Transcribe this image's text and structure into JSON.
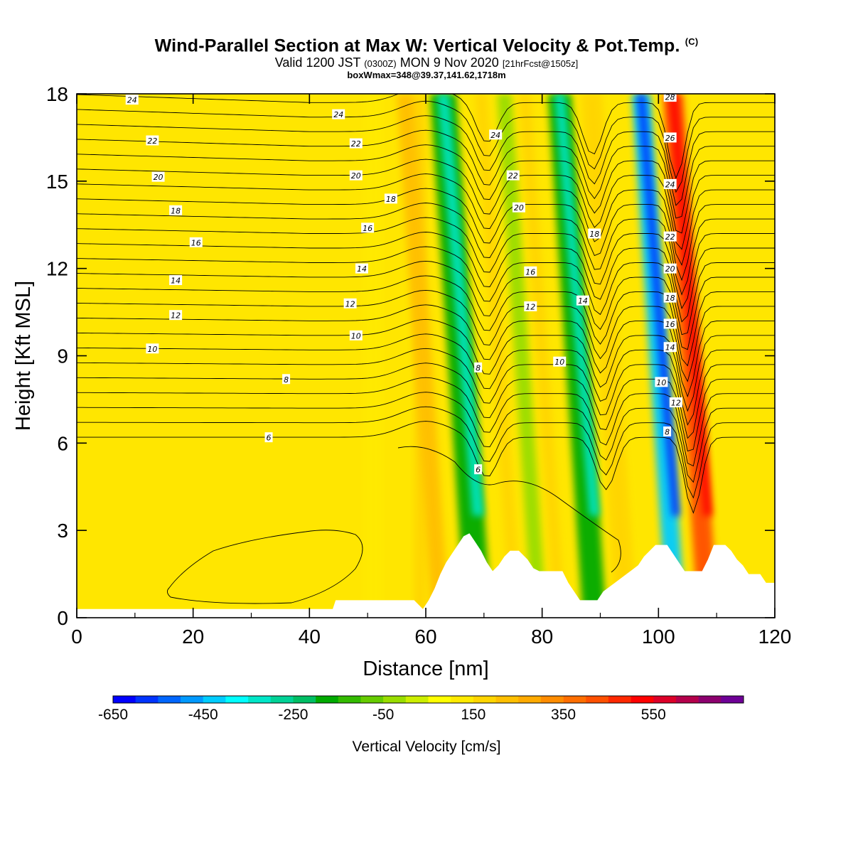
{
  "header": {
    "title_main": "Wind-Parallel Section at Max W: Vertical Velocity & Pot.Temp.",
    "title_copyright": "(C)",
    "valid_prefix": "Valid 1200 JST",
    "valid_utc": "(0300Z)",
    "valid_date": "MON 9 Nov 2020",
    "forecast_info": "[21hrFcst@1505z]",
    "box_info": "boxWmax=348@39.37,141.62,1718m"
  },
  "chart_data": {
    "type": "heatmap",
    "xlabel": "Distance [nm]",
    "ylabel": "Height [Kft MSL]",
    "xlim": [
      0,
      120
    ],
    "ylim": [
      0,
      18
    ],
    "x_ticks": [
      "0",
      "20",
      "40",
      "60",
      "80",
      "100",
      "120"
    ],
    "y_ticks": [
      "0",
      "3",
      "6",
      "9",
      "12",
      "15",
      "18"
    ],
    "colorbar": {
      "label": "Vertical Velocity [cm/s]",
      "tick_labels": [
        "-650",
        "-450",
        "-250",
        "-50",
        "150",
        "350",
        "550"
      ],
      "colors": [
        "#0000ff",
        "#0033ff",
        "#0066ff",
        "#0099ff",
        "#00ccff",
        "#00ffff",
        "#00e6c8",
        "#00d296",
        "#00be64",
        "#00aa00",
        "#33bb00",
        "#66cc00",
        "#99dd00",
        "#ccee00",
        "#ffff00",
        "#ffea00",
        "#ffd500",
        "#ffbf00",
        "#ffaa00",
        "#ff8c00",
        "#ff6e00",
        "#ff5000",
        "#ff2800",
        "#ff0000",
        "#dc0028",
        "#b4004b",
        "#8c006e",
        "#6e0096"
      ]
    },
    "vertical_velocity_bands": [
      {
        "x": 51,
        "w": 3,
        "value": 80
      },
      {
        "x": 59,
        "w": 2,
        "value": 120
      },
      {
        "x": 62.5,
        "w": 3,
        "value": 150
      },
      {
        "x": 69,
        "w": 4.5,
        "value": -250
      },
      {
        "x": 75.5,
        "w": 2,
        "value": 110
      },
      {
        "x": 79.5,
        "w": 2.5,
        "value": -80
      },
      {
        "x": 83,
        "w": 2,
        "value": 120
      },
      {
        "x": 89,
        "w": 4,
        "value": -250
      },
      {
        "x": 94.5,
        "w": 3.5,
        "value": 140
      },
      {
        "x": 103,
        "w": 3.2,
        "value": -500
      },
      {
        "x": 108.5,
        "w": 3.5,
        "value": 380
      }
    ],
    "potential_temperature_labels": [
      "24",
      "22",
      "20",
      "18",
      "16",
      "14",
      "12",
      "10",
      "8",
      "6",
      "24",
      "22",
      "20",
      "18",
      "16",
      "14",
      "12",
      "10",
      "8",
      "6",
      "24",
      "22",
      "20",
      "16",
      "12",
      "10",
      "18",
      "14",
      "28",
      "26",
      "24",
      "22",
      "20",
      "18",
      "16",
      "14",
      "10",
      "12",
      "8"
    ],
    "terrain_heights": [
      [
        0,
        0.3
      ],
      [
        44,
        0.3
      ],
      [
        44.5,
        0.6
      ],
      [
        58,
        0.6
      ],
      [
        59.5,
        0.3
      ],
      [
        60.5,
        0.6
      ],
      [
        61.5,
        1.0
      ],
      [
        62.5,
        1.5
      ],
      [
        63.5,
        1.9
      ],
      [
        64.5,
        2.2
      ],
      [
        65.5,
        2.5
      ],
      [
        66.5,
        2.8
      ],
      [
        67.5,
        2.9
      ],
      [
        68.5,
        2.6
      ],
      [
        69.5,
        2.3
      ],
      [
        70.5,
        1.9
      ],
      [
        71.5,
        1.6
      ],
      [
        72.5,
        1.8
      ],
      [
        73.5,
        2.1
      ],
      [
        74.5,
        2.3
      ],
      [
        76,
        2.3
      ],
      [
        77.5,
        2.0
      ],
      [
        78.5,
        1.7
      ],
      [
        79.5,
        1.6
      ],
      [
        83.5,
        1.6
      ],
      [
        84.5,
        1.2
      ],
      [
        85.5,
        0.9
      ],
      [
        86.5,
        0.6
      ],
      [
        89.5,
        0.6
      ],
      [
        90.5,
        0.9
      ],
      [
        92.5,
        1.2
      ],
      [
        94.5,
        1.5
      ],
      [
        96.5,
        1.8
      ],
      [
        97.5,
        2.1
      ],
      [
        98.5,
        2.3
      ],
      [
        99.5,
        2.5
      ],
      [
        101.5,
        2.5
      ],
      [
        102.5,
        2.2
      ],
      [
        103.5,
        1.9
      ],
      [
        104.5,
        1.6
      ],
      [
        107.5,
        1.6
      ],
      [
        108.5,
        2.0
      ],
      [
        109.5,
        2.5
      ],
      [
        111.5,
        2.5
      ],
      [
        112.5,
        2.3
      ],
      [
        113.5,
        2.0
      ],
      [
        114.5,
        1.8
      ],
      [
        115.5,
        1.5
      ],
      [
        117.5,
        1.5
      ],
      [
        118.5,
        1.2
      ],
      [
        120,
        1.2
      ]
    ]
  }
}
